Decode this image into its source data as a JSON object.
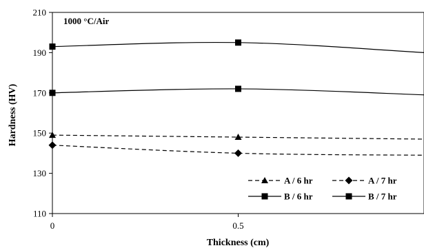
{
  "chart_data": {
    "type": "line",
    "title": "",
    "annotation": "1000 °C/Air",
    "xlabel": "Thickness (cm)",
    "ylabel": "Hardness (HV)",
    "xlim": [
      0,
      1
    ],
    "ylim": [
      110,
      210
    ],
    "x_ticks": [
      "0",
      "0.5"
    ],
    "y_ticks": [
      "110",
      "130",
      "150",
      "170",
      "190",
      "210"
    ],
    "grid": false,
    "legend_position": "bottom-right",
    "x": [
      0,
      0.5,
      1
    ],
    "series": [
      {
        "name": "A / 6 hr",
        "values": [
          149,
          148,
          147
        ],
        "marker": "triangle",
        "line": "dashed",
        "color": "#000000"
      },
      {
        "name": "A / 7 hr",
        "values": [
          144,
          140,
          139
        ],
        "marker": "diamond",
        "line": "dashed",
        "color": "#000000"
      },
      {
        "name": "B / 6 hr",
        "values": [
          193,
          195,
          190
        ],
        "marker": "square",
        "line": "solid",
        "color": "#000000"
      },
      {
        "name": "B / 7 hr",
        "values": [
          170,
          172,
          169
        ],
        "marker": "square",
        "line": "solid",
        "color": "#000000"
      }
    ]
  }
}
